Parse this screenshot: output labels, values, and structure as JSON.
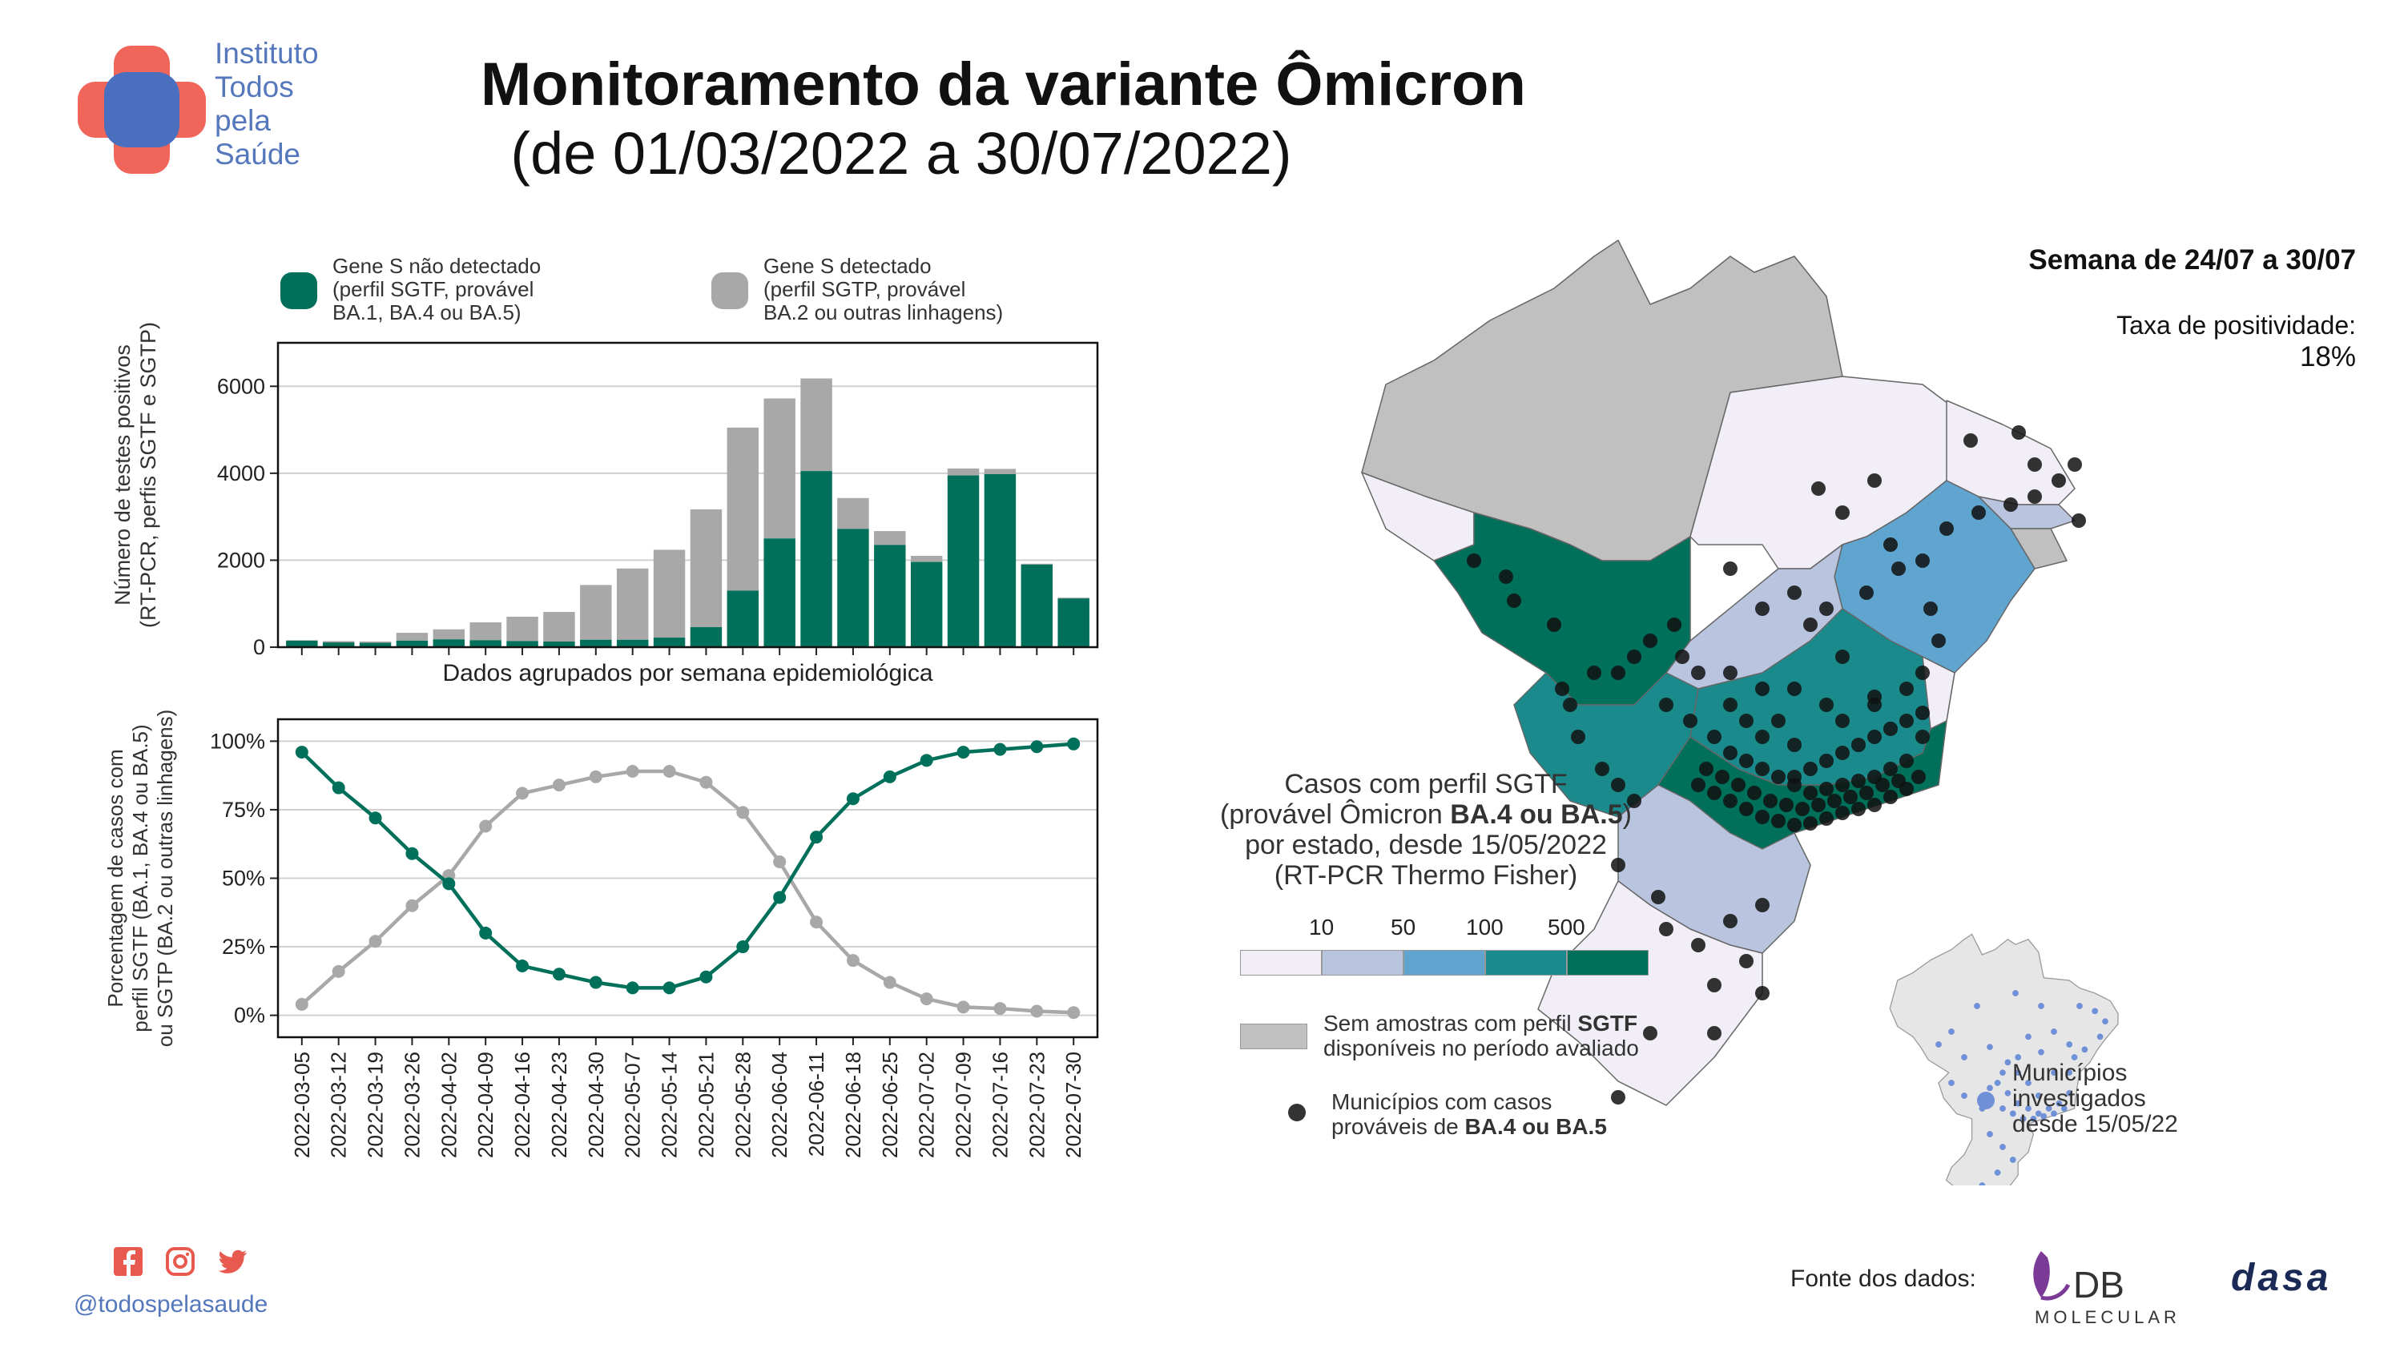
{
  "header": {
    "org_lines": [
      "Instituto",
      "Todos",
      "pela",
      "Saúde"
    ],
    "title": "Monitoramento da variante Ômicron",
    "subtitle": "(de 01/03/2022 a 30/07/2022)"
  },
  "legend_bar": {
    "sgtf_lines": [
      "Gene S não detectado",
      "(perfil SGTF, provável",
      "BA.1, BA.4 ou BA.5)"
    ],
    "sgtp_lines": [
      "Gene S detectado",
      "(perfil SGTP, provável",
      "BA.2 ou outras linhagens)"
    ]
  },
  "colors": {
    "sgtf": "#00705a",
    "sgtp": "#a8a8a8",
    "gray_state": "#c0c0c0",
    "bin1": "#f2eef7",
    "bin2": "#b9c4de",
    "bin3": "#60a4d0",
    "bin4": "#1a8a8c",
    "bin5": "#00705a",
    "dot": "#111111",
    "investigated_dot": "#6f8fd6"
  },
  "chart_data": [
    {
      "type": "bar",
      "stacked": true,
      "categories": [
        "2022-03-05",
        "2022-03-12",
        "2022-03-19",
        "2022-03-26",
        "2022-04-02",
        "2022-04-09",
        "2022-04-16",
        "2022-04-23",
        "2022-04-30",
        "2022-05-07",
        "2022-05-14",
        "2022-05-21",
        "2022-05-28",
        "2022-06-04",
        "2022-06-11",
        "2022-06-18",
        "2022-06-25",
        "2022-07-02",
        "2022-07-09",
        "2022-07-16",
        "2022-07-23",
        "2022-07-30"
      ],
      "series": [
        {
          "name": "Gene S não detectado",
          "values": [
            150,
            110,
            100,
            150,
            180,
            160,
            140,
            130,
            170,
            170,
            220,
            460,
            1300,
            2500,
            4050,
            2720,
            2350,
            1960,
            3950,
            3980,
            1900,
            1120
          ]
        },
        {
          "name": "Gene S detectado",
          "values": [
            10,
            30,
            30,
            180,
            230,
            410,
            560,
            680,
            1260,
            1640,
            2020,
            2710,
            3750,
            3220,
            2130,
            710,
            320,
            140,
            160,
            120,
            20,
            20
          ]
        }
      ],
      "ylabel_lines": [
        "Número de testes positivos",
        "(RT-PCR, perfis SGTF e SGTP)"
      ],
      "xlabel": "Dados agrupados por semana epidemiológica",
      "ylim": [
        0,
        7000
      ],
      "yticks": [
        0,
        2000,
        4000,
        6000
      ],
      "grid": true
    },
    {
      "type": "line",
      "categories": [
        "2022-03-05",
        "2022-03-12",
        "2022-03-19",
        "2022-03-26",
        "2022-04-02",
        "2022-04-09",
        "2022-04-16",
        "2022-04-23",
        "2022-04-30",
        "2022-05-07",
        "2022-05-14",
        "2022-05-21",
        "2022-05-28",
        "2022-06-04",
        "2022-06-11",
        "2022-06-18",
        "2022-06-25",
        "2022-07-02",
        "2022-07-09",
        "2022-07-16",
        "2022-07-23",
        "2022-07-30"
      ],
      "series": [
        {
          "name": "SGTF",
          "values": [
            96,
            83,
            72,
            59,
            48,
            30,
            18,
            15,
            12,
            10,
            10,
            14,
            25,
            43,
            65,
            79,
            87,
            93,
            96,
            97,
            98,
            99
          ]
        },
        {
          "name": "SGTP",
          "values": [
            4,
            16,
            27,
            40,
            51,
            69,
            81,
            84,
            87,
            89,
            89,
            85,
            74,
            56,
            34,
            20,
            12,
            6,
            3,
            2.5,
            1.5,
            1
          ]
        }
      ],
      "ylabel_lines": [
        "Porcentagem de casos com",
        "perfil SGTF (BA.1, BA.4 ou BA.5)",
        "ou SGTP (BA.2 ou outras linhagens)"
      ],
      "ylim": [
        -8,
        108
      ],
      "yticks": [
        0,
        25,
        50,
        75,
        100
      ],
      "ytick_labels": [
        "0%",
        "25%",
        "50%",
        "75%",
        "100%"
      ],
      "grid": true
    }
  ],
  "map": {
    "week_label": "Semana de 24/07 a 30/07",
    "positivity_label": "Taxa de positividade:",
    "positivity_value": "18%",
    "legend_title_lines": [
      "Casos com perfil SGTF",
      "(provável Ômicron BA.4 ou BA.5)",
      "por estado, desde 15/05/2022",
      "(RT-PCR Thermo Fisher)"
    ],
    "scale_labels": [
      "10",
      "50",
      "100",
      "500"
    ],
    "no_sample_lines": [
      "Sem amostras com perfil SGTF",
      "disponíveis no período avaliado"
    ],
    "municipalities_lines": [
      "Municípios com casos",
      "prováveis de BA.4 ou BA.5"
    ],
    "investigated_lines": [
      "Municípios",
      "investigados",
      "desde 15/05/22"
    ]
  },
  "footer": {
    "handle": "@todospelasaude",
    "source_label": "Fonte dos dados:",
    "db_logo_word": "DB",
    "db_logo_sub": "MOLECULAR",
    "dasa_logo": "dasa",
    "social_icons": [
      "facebook-icon",
      "instagram-icon",
      "twitter-icon"
    ]
  }
}
